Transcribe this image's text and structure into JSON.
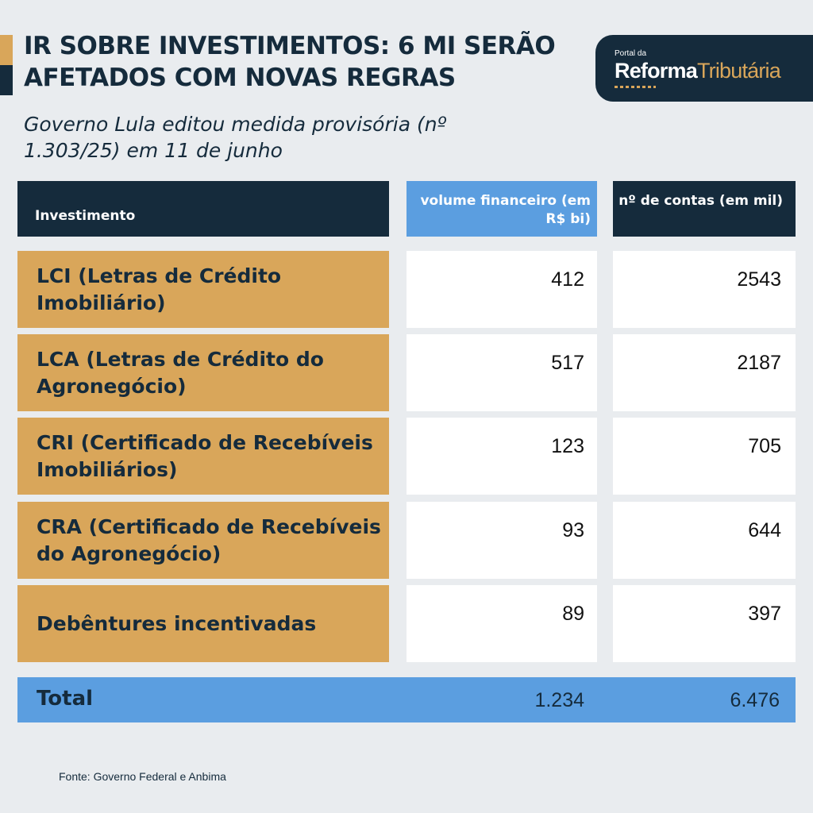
{
  "header": {
    "title": "IR SOBRE INVESTIMENTOS: 6 MI SERÃO AFETADOS COM NOVAS REGRAS",
    "subtitle": "Governo Lula editou medida provisória (nº 1.303/25) em 11 de junho"
  },
  "logo": {
    "small": "Portal da",
    "bold": "Reforma",
    "accent": "Tributária"
  },
  "colors": {
    "navy": "#152b3c",
    "gold": "#d9a65a",
    "blue": "#5b9ee0",
    "white": "#ffffff"
  },
  "chart_data": {
    "type": "table",
    "title": "IR SOBRE INVESTIMENTOS: 6 MI SERÃO AFETADOS COM NOVAS REGRAS",
    "columns": [
      "Investimento",
      "volume financeiro (em R$ bi)",
      "nº de contas (em mil)"
    ],
    "rows": [
      {
        "name": "LCI (Letras de Crédito Imobiliário)",
        "volume": "412",
        "contas": "2543"
      },
      {
        "name": "LCA  (Letras de Crédito do Agronegócio)",
        "volume": "517",
        "contas": "2187"
      },
      {
        "name": "CRI (Certificado de Recebíveis Imobiliários)",
        "volume": "123",
        "contas": "705"
      },
      {
        "name": "CRA  (Certificado de Recebíveis do Agronegócio)",
        "volume": "93",
        "contas": "644"
      },
      {
        "name": "Debêntures incentivadas",
        "volume": "89",
        "contas": "397"
      }
    ],
    "total": {
      "label": "Total",
      "volume": "1.234",
      "contas": "6.476"
    }
  },
  "footer": {
    "source": "Fonte: Governo Federal e Anbima"
  }
}
